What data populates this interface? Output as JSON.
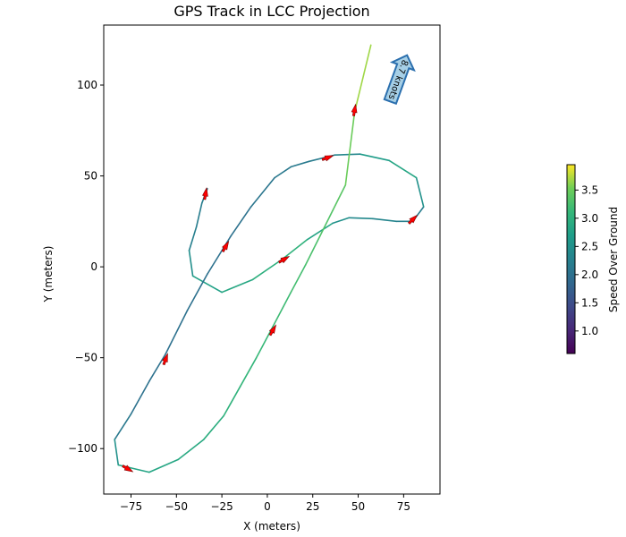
{
  "chart_data": {
    "type": "line",
    "title": "GPS Track in LCC Projection",
    "xlabel": "X (meters)",
    "ylabel": "Y (meters)",
    "xlim": [
      -90,
      95
    ],
    "ylim": [
      -125,
      133
    ],
    "x_ticks": [
      -75,
      -50,
      -25,
      0,
      25,
      50,
      75
    ],
    "y_ticks": [
      -100,
      -50,
      0,
      50,
      100
    ],
    "x_tick_labels": [
      "−75",
      "−50",
      "−25",
      "0",
      "25",
      "50",
      "75"
    ],
    "y_tick_labels": [
      "−100",
      "−50",
      "0",
      "50",
      "100"
    ],
    "grid": false,
    "colormap": "viridis",
    "colorbar": {
      "label": "Speed Over Ground",
      "min": 0.6,
      "max": 3.95,
      "ticks": [
        1.0,
        1.5,
        2.0,
        2.5,
        3.0,
        3.5
      ],
      "tick_labels": [
        "1.0",
        "1.5",
        "2.0",
        "2.5",
        "3.0",
        "3.5"
      ]
    },
    "track": [
      {
        "x": -33,
        "y": 43,
        "speed": 2.2
      },
      {
        "x": -36,
        "y": 35,
        "speed": 2.2
      },
      {
        "x": -39,
        "y": 22,
        "speed": 2.2
      },
      {
        "x": -43,
        "y": 9,
        "speed": 2.25
      },
      {
        "x": -41,
        "y": -5,
        "speed": 2.7
      },
      {
        "x": -25,
        "y": -14,
        "speed": 2.8
      },
      {
        "x": -8,
        "y": -7,
        "speed": 2.9
      },
      {
        "x": 8,
        "y": 4,
        "speed": 3.05
      },
      {
        "x": 22,
        "y": 15,
        "speed": 3.0
      },
      {
        "x": 36,
        "y": 24,
        "speed": 2.6
      },
      {
        "x": 45,
        "y": 27,
        "speed": 2.4
      },
      {
        "x": 58,
        "y": 26.5,
        "speed": 2.35
      },
      {
        "x": 71,
        "y": 25,
        "speed": 2.3
      },
      {
        "x": 80,
        "y": 25,
        "speed": 2.2
      },
      {
        "x": 86,
        "y": 33,
        "speed": 2.2
      },
      {
        "x": 82,
        "y": 49,
        "speed": 2.8
      },
      {
        "x": 67,
        "y": 58.5,
        "speed": 2.85
      },
      {
        "x": 51,
        "y": 62,
        "speed": 2.5
      },
      {
        "x": 37,
        "y": 61.5,
        "speed": 2.2
      },
      {
        "x": 23,
        "y": 58,
        "speed": 2.15
      },
      {
        "x": 13,
        "y": 55,
        "speed": 2.15
      },
      {
        "x": 4,
        "y": 49,
        "speed": 2.1
      },
      {
        "x": -9,
        "y": 33,
        "speed": 2.05
      },
      {
        "x": -20,
        "y": 17,
        "speed": 2.0
      },
      {
        "x": -33,
        "y": -4,
        "speed": 2.0
      },
      {
        "x": -44,
        "y": -24,
        "speed": 2.0
      },
      {
        "x": -56,
        "y": -48,
        "speed": 2.0
      },
      {
        "x": -65,
        "y": -63,
        "speed": 2.0
      },
      {
        "x": -75,
        "y": -81,
        "speed": 2.05
      },
      {
        "x": -84,
        "y": -95,
        "speed": 2.2
      },
      {
        "x": -82,
        "y": -109,
        "speed": 2.8
      },
      {
        "x": -65,
        "y": -113,
        "speed": 2.8
      },
      {
        "x": -49,
        "y": -106,
        "speed": 2.85
      },
      {
        "x": -35,
        "y": -95,
        "speed": 2.9
      },
      {
        "x": -24,
        "y": -82,
        "speed": 3.0
      },
      {
        "x": -15,
        "y": -66,
        "speed": 3.05
      },
      {
        "x": -6,
        "y": -50,
        "speed": 3.1
      },
      {
        "x": 3,
        "y": -33,
        "speed": 3.15
      },
      {
        "x": 13,
        "y": -14,
        "speed": 3.2
      },
      {
        "x": 21,
        "y": 1,
        "speed": 3.25
      },
      {
        "x": 29,
        "y": 17,
        "speed": 3.3
      },
      {
        "x": 36,
        "y": 31,
        "speed": 3.35
      },
      {
        "x": 43,
        "y": 45,
        "speed": 3.4
      },
      {
        "x": 48,
        "y": 85,
        "speed": 3.6
      },
      {
        "x": 57,
        "y": 122,
        "speed": 3.75
      }
    ],
    "heading_arrows": [
      {
        "x": -34,
        "y": 40,
        "heading_deg": 10
      },
      {
        "x": -23,
        "y": 11,
        "heading_deg": 30
      },
      {
        "x": -56,
        "y": -51,
        "heading_deg": 20
      },
      {
        "x": 9,
        "y": 4,
        "heading_deg": 60
      },
      {
        "x": 3,
        "y": -35,
        "heading_deg": 30
      },
      {
        "x": 33,
        "y": 60,
        "heading_deg": 70
      },
      {
        "x": 48,
        "y": 86,
        "heading_deg": 10
      },
      {
        "x": 80,
        "y": 26,
        "heading_deg": 45
      },
      {
        "x": -77,
        "y": -111,
        "heading_deg": 120
      }
    ],
    "wind_arrow": {
      "label": "8.7 knots",
      "x": 72,
      "y": 103,
      "heading_deg": 200,
      "fill": "#a6cfe6",
      "edge": "#2b6fae"
    },
    "colors": {
      "arrow_fill": "#ff0000",
      "arrow_edge": "#7a0000",
      "axis": "#000000"
    }
  }
}
